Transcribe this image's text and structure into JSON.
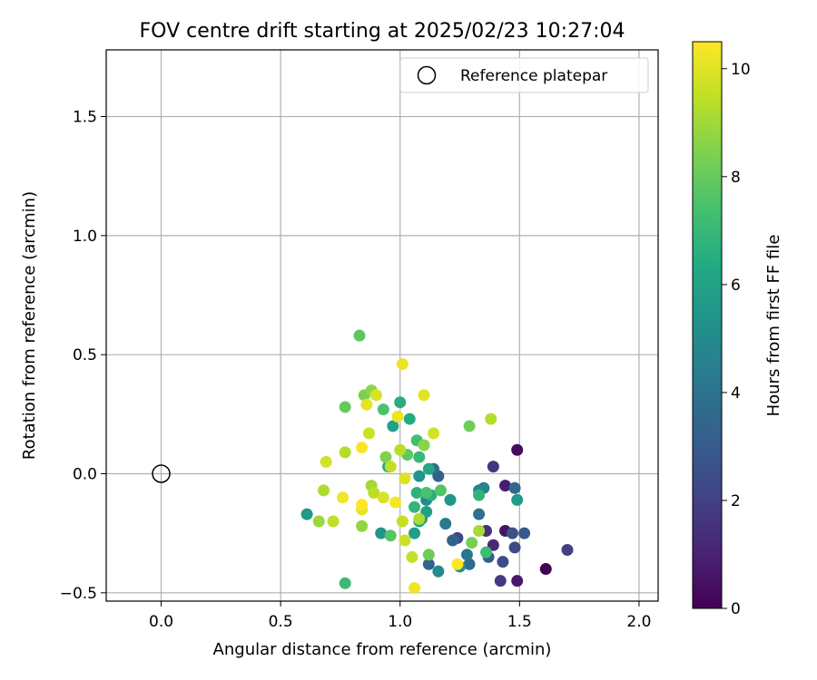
{
  "chart_data": {
    "type": "scatter",
    "title": "FOV centre drift starting at 2025/02/23 10:27:04",
    "xlabel": "Angular distance from reference (arcmin)",
    "ylabel": "Rotation from reference (arcmin)",
    "xlim": [
      -0.23,
      2.08
    ],
    "ylim": [
      -0.535,
      1.78
    ],
    "xticks": [
      0.0,
      0.5,
      1.0,
      1.5,
      2.0
    ],
    "xtick_labels": [
      "0.0",
      "0.5",
      "1.0",
      "1.5",
      "2.0"
    ],
    "yticks": [
      -0.5,
      0.0,
      0.5,
      1.0,
      1.5
    ],
    "ytick_labels": [
      "−0.5",
      "0.0",
      "0.5",
      "1.0",
      "1.5"
    ],
    "grid": true,
    "legend": {
      "placement": "top-right",
      "entries": [
        {
          "label": "Reference platepar",
          "marker": "open-circle"
        }
      ]
    },
    "reference_point": {
      "x": 0.0,
      "y": 0.0
    },
    "colorbar": {
      "label": "Hours from first FF file",
      "colormap": "viridis",
      "range": [
        0,
        10.5
      ],
      "ticks": [
        0,
        2,
        4,
        6,
        8,
        10
      ],
      "tick_labels": [
        "0",
        "2",
        "4",
        "6",
        "8",
        "10"
      ]
    },
    "points": [
      {
        "x": 1.61,
        "y": -0.4,
        "h": 0.0
      },
      {
        "x": 1.49,
        "y": 0.1,
        "h": 0.3
      },
      {
        "x": 1.44,
        "y": -0.24,
        "h": 0.5
      },
      {
        "x": 1.49,
        "y": -0.45,
        "h": 0.7
      },
      {
        "x": 1.44,
        "y": -0.05,
        "h": 0.9
      },
      {
        "x": 1.39,
        "y": -0.3,
        "h": 1.2
      },
      {
        "x": 1.36,
        "y": -0.24,
        "h": 1.4
      },
      {
        "x": 1.39,
        "y": 0.03,
        "h": 1.6
      },
      {
        "x": 1.42,
        "y": -0.45,
        "h": 1.8
      },
      {
        "x": 1.7,
        "y": -0.32,
        "h": 2.0
      },
      {
        "x": 1.24,
        "y": -0.27,
        "h": 2.2
      },
      {
        "x": 1.48,
        "y": -0.31,
        "h": 2.3
      },
      {
        "x": 1.43,
        "y": -0.37,
        "h": 2.5
      },
      {
        "x": 1.47,
        "y": -0.25,
        "h": 2.7
      },
      {
        "x": 1.52,
        "y": -0.25,
        "h": 2.9
      },
      {
        "x": 1.37,
        "y": -0.35,
        "h": 3.1
      },
      {
        "x": 1.16,
        "y": -0.01,
        "h": 3.2
      },
      {
        "x": 1.22,
        "y": -0.28,
        "h": 3.3
      },
      {
        "x": 1.12,
        "y": -0.38,
        "h": 3.4
      },
      {
        "x": 1.48,
        "y": -0.06,
        "h": 3.5
      },
      {
        "x": 1.29,
        "y": -0.38,
        "h": 3.6
      },
      {
        "x": 1.14,
        "y": 0.02,
        "h": 3.7
      },
      {
        "x": 1.33,
        "y": -0.17,
        "h": 3.9
      },
      {
        "x": 1.28,
        "y": -0.34,
        "h": 4.1
      },
      {
        "x": 1.19,
        "y": -0.21,
        "h": 4.3
      },
      {
        "x": 1.35,
        "y": -0.06,
        "h": 4.6
      },
      {
        "x": 1.33,
        "y": -0.07,
        "h": 4.8
      },
      {
        "x": 1.11,
        "y": -0.11,
        "h": 4.9
      },
      {
        "x": 1.16,
        "y": -0.41,
        "h": 5.0
      },
      {
        "x": 1.09,
        "y": -0.19,
        "h": 5.1
      },
      {
        "x": 1.25,
        "y": -0.39,
        "h": 5.2
      },
      {
        "x": 1.08,
        "y": -0.01,
        "h": 5.3
      },
      {
        "x": 0.92,
        "y": -0.25,
        "h": 5.4
      },
      {
        "x": 1.21,
        "y": -0.11,
        "h": 5.5
      },
      {
        "x": 0.61,
        "y": -0.17,
        "h": 5.6
      },
      {
        "x": 1.49,
        "y": -0.11,
        "h": 5.7
      },
      {
        "x": 1.06,
        "y": -0.25,
        "h": 5.8
      },
      {
        "x": 1.11,
        "y": -0.16,
        "h": 5.9
      },
      {
        "x": 0.97,
        "y": 0.2,
        "h": 6.0
      },
      {
        "x": 1.08,
        "y": -0.2,
        "h": 6.1
      },
      {
        "x": 0.95,
        "y": 0.03,
        "h": 6.2
      },
      {
        "x": 1.12,
        "y": 0.02,
        "h": 6.3
      },
      {
        "x": 1.04,
        "y": 0.23,
        "h": 6.4
      },
      {
        "x": 1.0,
        "y": 0.3,
        "h": 6.5
      },
      {
        "x": 1.13,
        "y": -0.09,
        "h": 6.6
      },
      {
        "x": 1.07,
        "y": -0.08,
        "h": 6.7
      },
      {
        "x": 1.33,
        "y": -0.09,
        "h": 6.8
      },
      {
        "x": 1.06,
        "y": -0.14,
        "h": 6.9
      },
      {
        "x": 1.08,
        "y": 0.07,
        "h": 7.0
      },
      {
        "x": 0.77,
        "y": -0.46,
        "h": 7.1
      },
      {
        "x": 1.36,
        "y": -0.33,
        "h": 7.2
      },
      {
        "x": 1.07,
        "y": 0.14,
        "h": 7.3
      },
      {
        "x": 1.11,
        "y": -0.08,
        "h": 7.4
      },
      {
        "x": 0.93,
        "y": 0.27,
        "h": 7.5
      },
      {
        "x": 1.17,
        "y": -0.07,
        "h": 7.6
      },
      {
        "x": 0.96,
        "y": -0.26,
        "h": 7.7
      },
      {
        "x": 0.83,
        "y": 0.58,
        "h": 7.8
      },
      {
        "x": 1.03,
        "y": 0.08,
        "h": 7.9
      },
      {
        "x": 0.77,
        "y": 0.28,
        "h": 8.0
      },
      {
        "x": 1.12,
        "y": -0.34,
        "h": 8.1
      },
      {
        "x": 1.29,
        "y": 0.2,
        "h": 8.2
      },
      {
        "x": 1.3,
        "y": -0.29,
        "h": 8.3
      },
      {
        "x": 0.85,
        "y": 0.33,
        "h": 8.4
      },
      {
        "x": 0.94,
        "y": 0.07,
        "h": 8.5
      },
      {
        "x": 1.1,
        "y": 0.12,
        "h": 8.6
      },
      {
        "x": 0.88,
        "y": 0.35,
        "h": 8.7
      },
      {
        "x": 0.84,
        "y": -0.22,
        "h": 8.8
      },
      {
        "x": 0.66,
        "y": -0.2,
        "h": 8.9
      },
      {
        "x": 0.88,
        "y": -0.05,
        "h": 9.0
      },
      {
        "x": 1.33,
        "y": -0.24,
        "h": 9.1
      },
      {
        "x": 0.68,
        "y": -0.07,
        "h": 9.2
      },
      {
        "x": 1.08,
        "y": -0.19,
        "h": 9.2
      },
      {
        "x": 0.77,
        "y": 0.09,
        "h": 9.3
      },
      {
        "x": 1.38,
        "y": 0.23,
        "h": 9.3
      },
      {
        "x": 0.89,
        "y": -0.08,
        "h": 9.4
      },
      {
        "x": 1.0,
        "y": 0.1,
        "h": 9.4
      },
      {
        "x": 0.72,
        "y": -0.2,
        "h": 9.5
      },
      {
        "x": 0.96,
        "y": 0.03,
        "h": 9.5
      },
      {
        "x": 1.01,
        "y": -0.2,
        "h": 9.6
      },
      {
        "x": 1.05,
        "y": -0.35,
        "h": 9.6
      },
      {
        "x": 0.87,
        "y": 0.17,
        "h": 9.7
      },
      {
        "x": 1.02,
        "y": -0.28,
        "h": 9.7
      },
      {
        "x": 0.69,
        "y": 0.05,
        "h": 9.8
      },
      {
        "x": 1.14,
        "y": 0.17,
        "h": 9.8
      },
      {
        "x": 0.93,
        "y": -0.1,
        "h": 9.9
      },
      {
        "x": 0.9,
        "y": 0.33,
        "h": 9.9
      },
      {
        "x": 1.1,
        "y": 0.33,
        "h": 10.0
      },
      {
        "x": 1.02,
        "y": -0.02,
        "h": 10.0
      },
      {
        "x": 0.84,
        "y": -0.15,
        "h": 10.1
      },
      {
        "x": 0.86,
        "y": 0.29,
        "h": 10.1
      },
      {
        "x": 0.99,
        "y": 0.24,
        "h": 10.2
      },
      {
        "x": 1.01,
        "y": 0.46,
        "h": 10.2
      },
      {
        "x": 0.76,
        "y": -0.1,
        "h": 10.3
      },
      {
        "x": 1.06,
        "y": -0.48,
        "h": 10.3
      },
      {
        "x": 0.84,
        "y": 0.11,
        "h": 10.4
      },
      {
        "x": 0.98,
        "y": -0.12,
        "h": 10.4
      },
      {
        "x": 1.24,
        "y": -0.38,
        "h": 10.5
      },
      {
        "x": 0.84,
        "y": -0.13,
        "h": 10.5
      }
    ]
  }
}
